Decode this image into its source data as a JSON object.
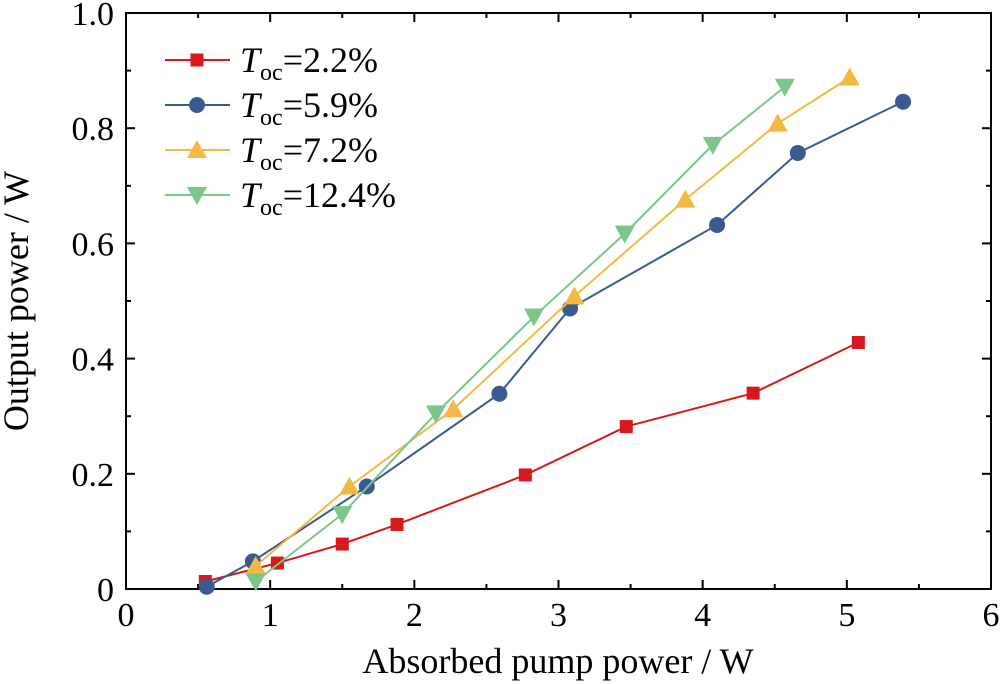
{
  "chart_data": {
    "type": "line",
    "xlabel": "Absorbed pump power / W",
    "ylabel": "Output power / W",
    "xlim": [
      0,
      6
    ],
    "ylim": [
      0,
      1.0
    ],
    "xticks": [
      "0",
      "1",
      "2",
      "3",
      "4",
      "5",
      "6"
    ],
    "yticks": [
      "0",
      "0.2",
      "0.4",
      "0.6",
      "0.8",
      "1.0"
    ],
    "grid": false,
    "legend_position": "top-left",
    "series": [
      {
        "name": "T_oc=2.2%",
        "label_main": "T",
        "label_sub": "oc",
        "label_rest": "=2.2%",
        "color": "#d7191c",
        "marker": "square",
        "x": [
          0.55,
          1.05,
          1.5,
          1.88,
          2.77,
          3.47,
          4.35,
          5.08
        ],
        "y": [
          0.013,
          0.045,
          0.078,
          0.112,
          0.198,
          0.282,
          0.34,
          0.428
        ]
      },
      {
        "name": "T_oc=5.9%",
        "label_main": "T",
        "label_sub": "oc",
        "label_rest": "=5.9%",
        "color": "#3a5a92",
        "marker": "circle",
        "x": [
          0.56,
          0.88,
          1.67,
          2.59,
          3.08,
          4.1,
          4.66,
          5.39
        ],
        "y": [
          0.004,
          0.048,
          0.178,
          0.339,
          0.487,
          0.632,
          0.757,
          0.846
        ]
      },
      {
        "name": "T_oc=7.2%",
        "label_main": "T",
        "label_sub": "oc",
        "label_rest": "=7.2%",
        "color": "#f4b942",
        "marker": "triangle-up",
        "x": [
          0.9,
          1.55,
          2.27,
          3.11,
          3.88,
          4.52,
          5.02
        ],
        "y": [
          0.04,
          0.178,
          0.312,
          0.508,
          0.676,
          0.808,
          0.888
        ]
      },
      {
        "name": "T_oc=12.4%",
        "label_main": "T",
        "label_sub": "oc",
        "label_rest": "=12.4%",
        "color": "#7bc68a",
        "marker": "triangle-down",
        "x": [
          0.9,
          1.5,
          2.15,
          2.83,
          3.46,
          4.07,
          4.57
        ],
        "y": [
          0.013,
          0.13,
          0.305,
          0.473,
          0.617,
          0.771,
          0.872
        ]
      }
    ]
  }
}
